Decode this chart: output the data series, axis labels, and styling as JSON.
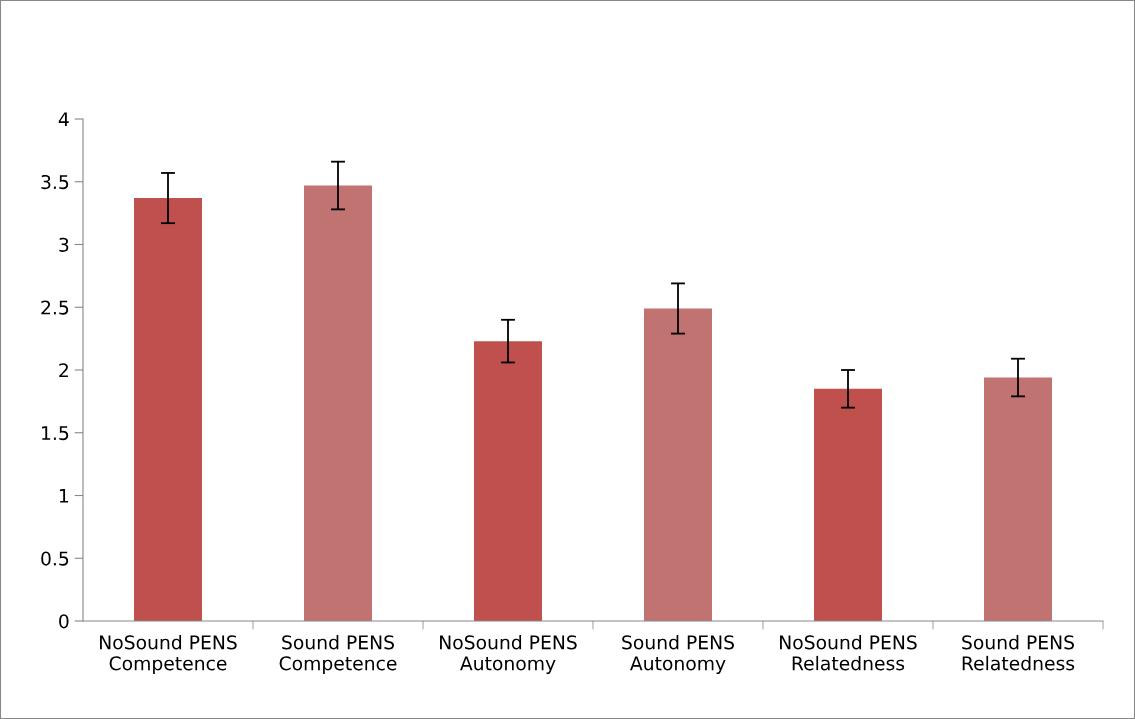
{
  "chart_data": {
    "type": "bar",
    "categories": [
      "NoSound PENS\nCompetence",
      "Sound PENS\nCompetence",
      "NoSound PENS\nAutonomy",
      "Sound PENS\nAutonomy",
      "NoSound PENS\nRelatedness",
      "Sound PENS\nRelatedness"
    ],
    "values": [
      3.37,
      3.47,
      2.23,
      2.49,
      1.85,
      1.94
    ],
    "errors": [
      0.2,
      0.19,
      0.17,
      0.2,
      0.15,
      0.15
    ],
    "colors": [
      "#c0504d",
      "#c07370",
      "#c0504d",
      "#c07370",
      "#c0504d",
      "#c07370"
    ],
    "ylim": [
      0,
      4
    ],
    "yticks": [
      0,
      0.5,
      1,
      1.5,
      2,
      2.5,
      3,
      3.5,
      4
    ],
    "grid": false,
    "legend": false
  }
}
